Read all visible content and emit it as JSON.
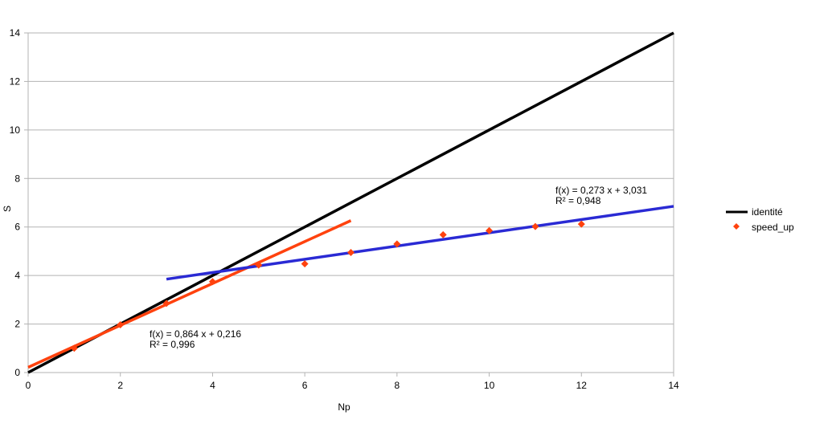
{
  "chart_data": {
    "type": "scatter",
    "xlabel": "Np",
    "ylabel": "S",
    "xlim": [
      0,
      14
    ],
    "ylim": [
      0,
      14
    ],
    "x_ticks": [
      0,
      2,
      4,
      6,
      8,
      10,
      12,
      14
    ],
    "y_ticks": [
      0,
      2,
      4,
      6,
      8,
      10,
      12,
      14
    ],
    "grid": "horizontal",
    "legend_position": "right",
    "series": [
      {
        "name": "identité",
        "kind": "line",
        "color": "#000000",
        "x": [
          0,
          14
        ],
        "y": [
          0,
          14
        ]
      },
      {
        "name": "speed_up",
        "kind": "points",
        "marker": "diamond",
        "color": "#ff420e",
        "x": [
          1,
          2,
          3,
          4,
          5,
          6,
          7,
          8,
          9,
          10,
          11,
          12
        ],
        "y": [
          1.0,
          1.97,
          2.85,
          3.75,
          4.43,
          4.48,
          4.95,
          5.3,
          5.68,
          5.85,
          6.02,
          6.12
        ]
      }
    ],
    "trendlines": [
      {
        "color": "#ff420e",
        "slope": 0.864,
        "intercept": 0.216,
        "x_range": [
          0,
          7
        ],
        "equation": "f(x) = 0,864 x + 0,216",
        "r2": "R² = 0,996"
      },
      {
        "color": "#2a2ad4",
        "slope": 0.273,
        "intercept": 3.031,
        "x_range": [
          3,
          14
        ],
        "equation": "f(x) = 0,273 x + 3,031",
        "r2": "R² = 0,948"
      }
    ]
  },
  "legend": {
    "items": [
      {
        "label": "identité",
        "symbol": "line",
        "color": "#000000"
      },
      {
        "label": "speed_up",
        "symbol": "diamond",
        "color": "#ff420e"
      }
    ]
  }
}
